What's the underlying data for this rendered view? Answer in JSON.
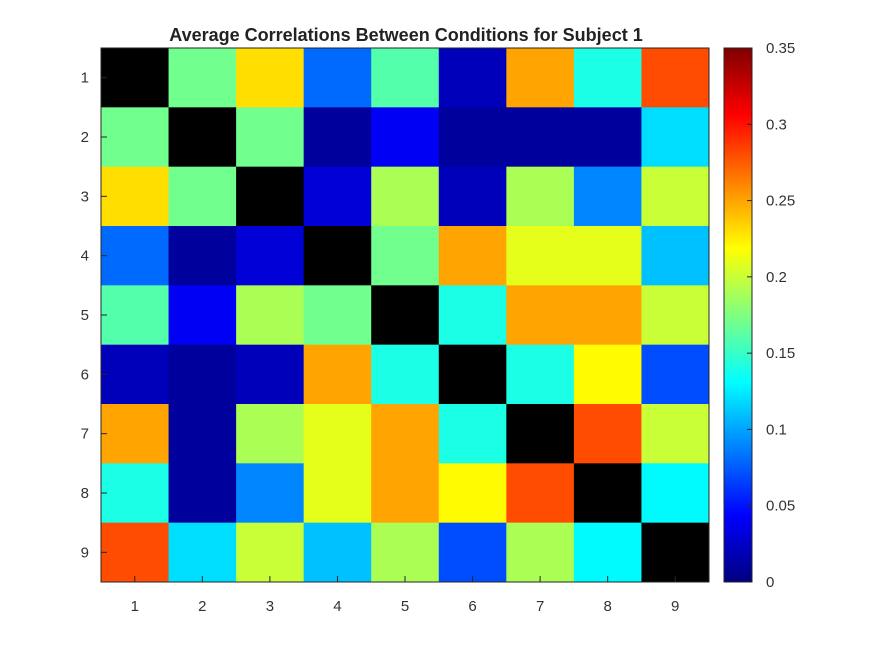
{
  "chart_data": {
    "type": "heatmap",
    "title": "Average Correlations Between Conditions for Subject 1",
    "x_categories": [
      "1",
      "2",
      "3",
      "4",
      "5",
      "6",
      "7",
      "8",
      "9"
    ],
    "y_categories": [
      "1",
      "2",
      "3",
      "4",
      "5",
      "6",
      "7",
      "8",
      "9"
    ],
    "values": [
      [
        null,
        0.17,
        0.23,
        0.08,
        0.16,
        0.02,
        0.25,
        0.14,
        0.28
      ],
      [
        0.17,
        null,
        0.17,
        0.01,
        0.04,
        0.01,
        0.01,
        0.01,
        0.12
      ],
      [
        0.23,
        0.17,
        null,
        0.03,
        0.19,
        0.02,
        0.19,
        0.09,
        0.2
      ],
      [
        0.08,
        0.01,
        0.03,
        null,
        0.17,
        0.25,
        0.21,
        0.21,
        0.11
      ],
      [
        0.16,
        0.04,
        0.19,
        0.17,
        null,
        0.14,
        0.25,
        0.25,
        0.2
      ],
      [
        0.02,
        0.01,
        0.02,
        0.25,
        0.14,
        null,
        0.14,
        0.22,
        0.07
      ],
      [
        0.25,
        0.01,
        0.19,
        0.21,
        0.25,
        0.14,
        null,
        0.28,
        0.2
      ],
      [
        0.14,
        0.01,
        0.09,
        0.21,
        0.25,
        0.22,
        0.28,
        null,
        0.13
      ],
      [
        0.28,
        0.12,
        0.2,
        0.11,
        0.19,
        0.07,
        0.19,
        0.13,
        null
      ]
    ],
    "diagonal_color": "#000000",
    "colormap": "jet",
    "colorbar": {
      "range": [
        0,
        0.35
      ],
      "ticks": [
        "0",
        "0.05",
        "0.1",
        "0.15",
        "0.2",
        "0.25",
        "0.3",
        "0.35"
      ],
      "tick_values": [
        0,
        0.05,
        0.1,
        0.15,
        0.2,
        0.25,
        0.3,
        0.35
      ],
      "position": "right"
    }
  }
}
